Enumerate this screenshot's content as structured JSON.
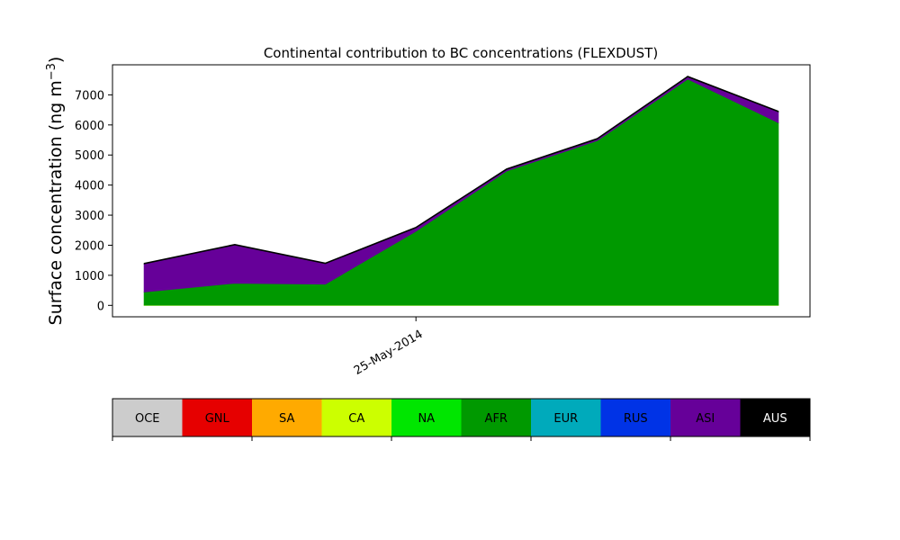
{
  "chart_data": {
    "type": "area",
    "stacked": true,
    "title": "Continental contribution to BC concentrations (FLEXDUST)",
    "ylabel": "Surface concentration (ng m",
    "ylabel_sup": "−3",
    "ylabel_close": ")",
    "xlabel": "",
    "x_start_date": "2014-05-22",
    "x_step_days": 1,
    "x_index": [
      0,
      1,
      2,
      3,
      4,
      5,
      6,
      7
    ],
    "x_ticks": [
      {
        "x": 3,
        "label": "25-May-2014"
      }
    ],
    "xlim": [
      -0.35,
      7.35
    ],
    "ylim": [
      -380,
      8000
    ],
    "y_ticks": [
      0,
      1000,
      2000,
      3000,
      4000,
      5000,
      6000,
      7000
    ],
    "grid": false,
    "series": [
      {
        "name": "OCE",
        "color": "#cccccc",
        "values": [
          0,
          0,
          0,
          0,
          0,
          0,
          0,
          0
        ]
      },
      {
        "name": "GNL",
        "color": "#e60000",
        "values": [
          0,
          0,
          0,
          0,
          0,
          0,
          0,
          0
        ]
      },
      {
        "name": "SA",
        "color": "#ffaa00",
        "values": [
          0,
          0,
          0,
          0,
          0,
          0,
          0,
          0
        ]
      },
      {
        "name": "CA",
        "color": "#ccff00",
        "values": [
          10,
          10,
          10,
          10,
          10,
          10,
          10,
          10
        ]
      },
      {
        "name": "NA",
        "color": "#00e600",
        "values": [
          0,
          0,
          0,
          0,
          0,
          0,
          0,
          0
        ]
      },
      {
        "name": "AFR",
        "color": "#009900",
        "values": [
          440,
          730,
          700,
          2460,
          4460,
          5470,
          7520,
          6070
        ]
      },
      {
        "name": "EUR",
        "color": "#00aabb",
        "values": [
          0,
          0,
          0,
          0,
          0,
          0,
          0,
          0
        ]
      },
      {
        "name": "RUS",
        "color": "#0033e6",
        "values": [
          0,
          0,
          0,
          0,
          0,
          0,
          0,
          0
        ]
      },
      {
        "name": "ASI",
        "color": "#660099",
        "values": [
          930,
          1270,
          680,
          110,
          50,
          50,
          70,
          360
        ]
      },
      {
        "name": "AUS",
        "color": "#000000",
        "values": [
          20,
          20,
          20,
          20,
          20,
          20,
          20,
          20
        ]
      }
    ],
    "legend_position": "bottom (colour bar)"
  }
}
